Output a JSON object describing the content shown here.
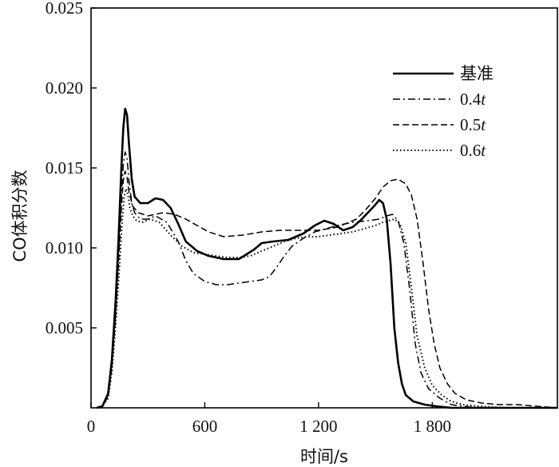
{
  "chart_data": {
    "type": "line",
    "title": "",
    "xlabel": "时间/s",
    "ylabel": "CO体积分数",
    "xlim": [
      0,
      2460
    ],
    "ylim": [
      0,
      0.025
    ],
    "x_ticks": [
      0,
      600,
      1200,
      1800
    ],
    "x_tick_labels": [
      "0",
      "600",
      "1 200",
      "1 800"
    ],
    "y_ticks": [
      0.005,
      0.01,
      0.015,
      0.02,
      0.025
    ],
    "y_tick_labels": [
      "0.005",
      "0.010",
      "0.015",
      "0.020",
      "0.025"
    ],
    "legend_position": "top-right",
    "grid": false,
    "series": [
      {
        "name": "基准",
        "legend": {
          "main": "基准",
          "italic": ""
        },
        "style": "solid",
        "x": [
          30,
          60,
          90,
          110,
          130,
          145,
          160,
          170,
          180,
          190,
          200,
          215,
          230,
          260,
          300,
          340,
          380,
          420,
          460,
          500,
          560,
          620,
          700,
          780,
          820,
          860,
          900,
          960,
          1040,
          1120,
          1180,
          1230,
          1280,
          1330,
          1380,
          1420,
          1460,
          1500,
          1520,
          1540,
          1560,
          1580,
          1600,
          1620,
          1640,
          1660,
          1700,
          1760,
          1820,
          1900,
          2000,
          2100,
          2200,
          2300,
          2460
        ],
        "y": [
          0,
          0.0001,
          0.0009,
          0.003,
          0.0068,
          0.0105,
          0.015,
          0.0175,
          0.0187,
          0.0183,
          0.0165,
          0.0143,
          0.0132,
          0.0128,
          0.0128,
          0.0131,
          0.013,
          0.0125,
          0.0115,
          0.0104,
          0.0098,
          0.0095,
          0.0093,
          0.0093,
          0.0096,
          0.0099,
          0.0103,
          0.0104,
          0.0105,
          0.0109,
          0.0114,
          0.0117,
          0.0115,
          0.0111,
          0.0113,
          0.0117,
          0.0122,
          0.0127,
          0.013,
          0.0128,
          0.0118,
          0.009,
          0.005,
          0.0028,
          0.0015,
          0.0008,
          0.0004,
          0.0002,
          0.0001,
          0,
          0,
          0,
          0,
          0,
          0
        ]
      },
      {
        "name": "0.4t",
        "legend": {
          "main": "0.4",
          "italic": "t"
        },
        "style": "dashdot",
        "x": [
          30,
          60,
          90,
          110,
          130,
          145,
          160,
          170,
          180,
          190,
          200,
          215,
          230,
          260,
          300,
          340,
          400,
          460,
          500,
          540,
          600,
          660,
          720,
          780,
          840,
          900,
          940,
          980,
          1020,
          1060,
          1120,
          1180,
          1240,
          1300,
          1380,
          1460,
          1520,
          1560,
          1590,
          1620,
          1650,
          1680,
          1710,
          1740,
          1780,
          1840,
          1900,
          1960,
          2050,
          2150,
          2300,
          2460
        ],
        "y": [
          0,
          0.0001,
          0.0008,
          0.0027,
          0.006,
          0.0095,
          0.0132,
          0.0152,
          0.016,
          0.0156,
          0.0142,
          0.0128,
          0.0122,
          0.0118,
          0.0118,
          0.012,
          0.0116,
          0.0104,
          0.0092,
          0.0084,
          0.0079,
          0.0077,
          0.0077,
          0.0078,
          0.0079,
          0.008,
          0.0082,
          0.0088,
          0.0095,
          0.0101,
          0.0106,
          0.011,
          0.0112,
          0.0114,
          0.0116,
          0.0117,
          0.0118,
          0.012,
          0.0121,
          0.0117,
          0.0103,
          0.0075,
          0.004,
          0.0022,
          0.0012,
          0.0006,
          0.0002,
          0.0001,
          0,
          0,
          0,
          0
        ]
      },
      {
        "name": "0.5t",
        "legend": {
          "main": "0.5",
          "italic": "t"
        },
        "style": "dashed",
        "x": [
          30,
          60,
          90,
          110,
          130,
          145,
          160,
          170,
          180,
          190,
          200,
          220,
          250,
          300,
          380,
          440,
          500,
          560,
          620,
          700,
          800,
          900,
          1000,
          1100,
          1200,
          1300,
          1400,
          1450,
          1500,
          1540,
          1580,
          1620,
          1660,
          1690,
          1720,
          1750,
          1780,
          1810,
          1840,
          1880,
          1920,
          1980,
          2060,
          2150,
          2250,
          2350,
          2460
        ],
        "y": [
          0,
          0.0001,
          0.0007,
          0.0025,
          0.0058,
          0.009,
          0.0125,
          0.0142,
          0.0148,
          0.0144,
          0.0135,
          0.0126,
          0.0122,
          0.012,
          0.0122,
          0.0121,
          0.0118,
          0.0114,
          0.011,
          0.0107,
          0.0108,
          0.011,
          0.0111,
          0.0111,
          0.0111,
          0.0113,
          0.0118,
          0.0124,
          0.0131,
          0.0138,
          0.0142,
          0.0143,
          0.014,
          0.0133,
          0.0118,
          0.0092,
          0.0062,
          0.004,
          0.0025,
          0.0015,
          0.0009,
          0.0005,
          0.0003,
          0.0002,
          0.0002,
          0.0001,
          0
        ]
      },
      {
        "name": "0.6t",
        "legend": {
          "main": "0.6",
          "italic": "t"
        },
        "style": "dotted",
        "x": [
          30,
          60,
          90,
          110,
          130,
          150,
          165,
          175,
          185,
          195,
          205,
          220,
          240,
          270,
          310,
          360,
          420,
          480,
          540,
          600,
          660,
          720,
          780,
          840,
          900,
          960,
          1020,
          1080,
          1140,
          1200,
          1260,
          1320,
          1380,
          1440,
          1500,
          1540,
          1570,
          1600,
          1630,
          1660,
          1690,
          1720,
          1760,
          1800,
          1850,
          1900,
          1960,
          2050,
          2200,
          2460
        ],
        "y": [
          0,
          0.0001,
          0.0006,
          0.0022,
          0.0052,
          0.0088,
          0.0118,
          0.0132,
          0.0137,
          0.0133,
          0.0125,
          0.012,
          0.0117,
          0.0116,
          0.0118,
          0.0116,
          0.0108,
          0.0101,
          0.0097,
          0.0096,
          0.0095,
          0.0094,
          0.0094,
          0.0095,
          0.0098,
          0.0101,
          0.0104,
          0.0106,
          0.0107,
          0.0107,
          0.0108,
          0.0109,
          0.011,
          0.0112,
          0.0114,
          0.0116,
          0.0117,
          0.0118,
          0.0115,
          0.0103,
          0.0075,
          0.0045,
          0.0025,
          0.0014,
          0.0008,
          0.0004,
          0.0002,
          0.0001,
          0,
          0
        ]
      }
    ]
  }
}
